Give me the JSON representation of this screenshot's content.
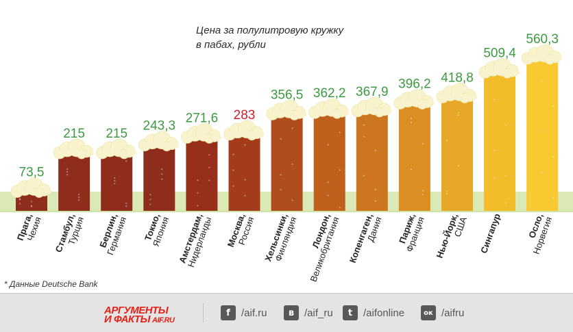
{
  "title": [
    "Цена за полулитровую кружку",
    "в пабах, рубли"
  ],
  "footnote": "* Данные Deutsche Bank",
  "logo": {
    "line1": "АРГУМЕНТЫ",
    "line2": "И ФАКТЫ",
    "site": "AIF.RU"
  },
  "social": [
    {
      "icon": "facebook-icon",
      "glyph": "f",
      "text": "/aif.ru"
    },
    {
      "icon": "vk-icon",
      "glyph": "в",
      "text": "/aif_ru"
    },
    {
      "icon": "twitter-icon",
      "glyph": "t",
      "text": "/aifonline"
    },
    {
      "icon": "odnoklassniki-icon",
      "glyph": "ок",
      "text": "/aifru"
    }
  ],
  "colors": {
    "value_label": "#3b9a3f",
    "highlight_label": "#d0202a",
    "ground": "#cfe2a5",
    "foam": "#f8f3cc"
  },
  "chart_data": {
    "type": "bar",
    "title": "Цена за полулитровую кружку в пабах, рубли",
    "categories": [
      {
        "city": "Прага",
        "country": "Чехия"
      },
      {
        "city": "Стамбул",
        "country": "Турция"
      },
      {
        "city": "Берлин",
        "country": "Германия"
      },
      {
        "city": "Токио",
        "country": "Япония"
      },
      {
        "city": "Амстердам",
        "country": "Нидерланды"
      },
      {
        "city": "Москва",
        "country": "Россия"
      },
      {
        "city": "Хельсинки",
        "country": "Финляндия"
      },
      {
        "city": "Лондон",
        "country": "Великобритания"
      },
      {
        "city": "Копенгаген",
        "country": "Дания"
      },
      {
        "city": "Париж",
        "country": "Франция"
      },
      {
        "city": "Нью-Йорк",
        "country": "США"
      },
      {
        "city": "Сингапур",
        "country": ""
      },
      {
        "city": "Осло",
        "country": "Норвегия"
      }
    ],
    "values": [
      73.5,
      215,
      215,
      243.3,
      271.6,
      283,
      356.5,
      362.2,
      367.9,
      396.2,
      418.8,
      509.4,
      560.3
    ],
    "value_labels": [
      "73,5",
      "215",
      "215",
      "243,3",
      "271,6",
      "283",
      "356,5",
      "362,2",
      "367,9",
      "396,2",
      "418,8",
      "509,4",
      "560,3"
    ],
    "highlight": "Москва",
    "bar_colors": [
      "#8f2d1d",
      "#8f2d1d",
      "#8f2d1d",
      "#8f2d1d",
      "#972f1b",
      "#a43b1b",
      "#b04d1c",
      "#bf611d",
      "#cd7620",
      "#db8e23",
      "#e7a727",
      "#f2bc2b",
      "#f8c930"
    ],
    "ylim": [
      0,
      560.3
    ]
  }
}
